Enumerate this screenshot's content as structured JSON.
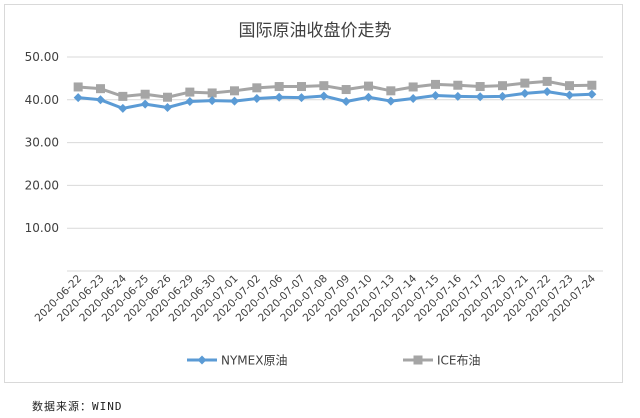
{
  "chart_data": {
    "type": "line",
    "title": "国际原油收盘价走势",
    "xlabel": "",
    "ylabel": "",
    "categories": [
      "2020-06-22",
      "2020-06-23",
      "2020-06-24",
      "2020-06-25",
      "2020-06-26",
      "2020-06-29",
      "2020-06-30",
      "2020-07-01",
      "2020-07-02",
      "2020-07-06",
      "2020-07-07",
      "2020-07-08",
      "2020-07-09",
      "2020-07-10",
      "2020-07-13",
      "2020-07-14",
      "2020-07-15",
      "2020-07-16",
      "2020-07-17",
      "2020-07-20",
      "2020-07-21",
      "2020-07-22",
      "2020-07-23",
      "2020-07-24"
    ],
    "y_ticks": [
      "10.00",
      "20.00",
      "30.00",
      "40.00",
      "50.00"
    ],
    "ylim": [
      0,
      50
    ],
    "grid": true,
    "legend_position": "bottom",
    "series": [
      {
        "name": "NYMEX原油",
        "color": "#5b9bd5",
        "marker": "diamond",
        "values": [
          40.5,
          40.0,
          38.0,
          39.0,
          38.2,
          39.6,
          39.8,
          39.7,
          40.3,
          40.6,
          40.5,
          40.9,
          39.6,
          40.6,
          39.7,
          40.3,
          41.0,
          40.8,
          40.7,
          40.8,
          41.5,
          41.9,
          41.1,
          41.3
        ]
      },
      {
        "name": "ICE布油",
        "color": "#a5a5a5",
        "marker": "square",
        "values": [
          43.0,
          42.6,
          40.8,
          41.3,
          40.6,
          41.8,
          41.6,
          42.1,
          42.8,
          43.1,
          43.1,
          43.3,
          42.4,
          43.2,
          42.1,
          43.0,
          43.6,
          43.4,
          43.1,
          43.3,
          43.9,
          44.3,
          43.3,
          43.4
        ]
      }
    ]
  },
  "footer": {
    "source": "数据来源：WIND"
  }
}
